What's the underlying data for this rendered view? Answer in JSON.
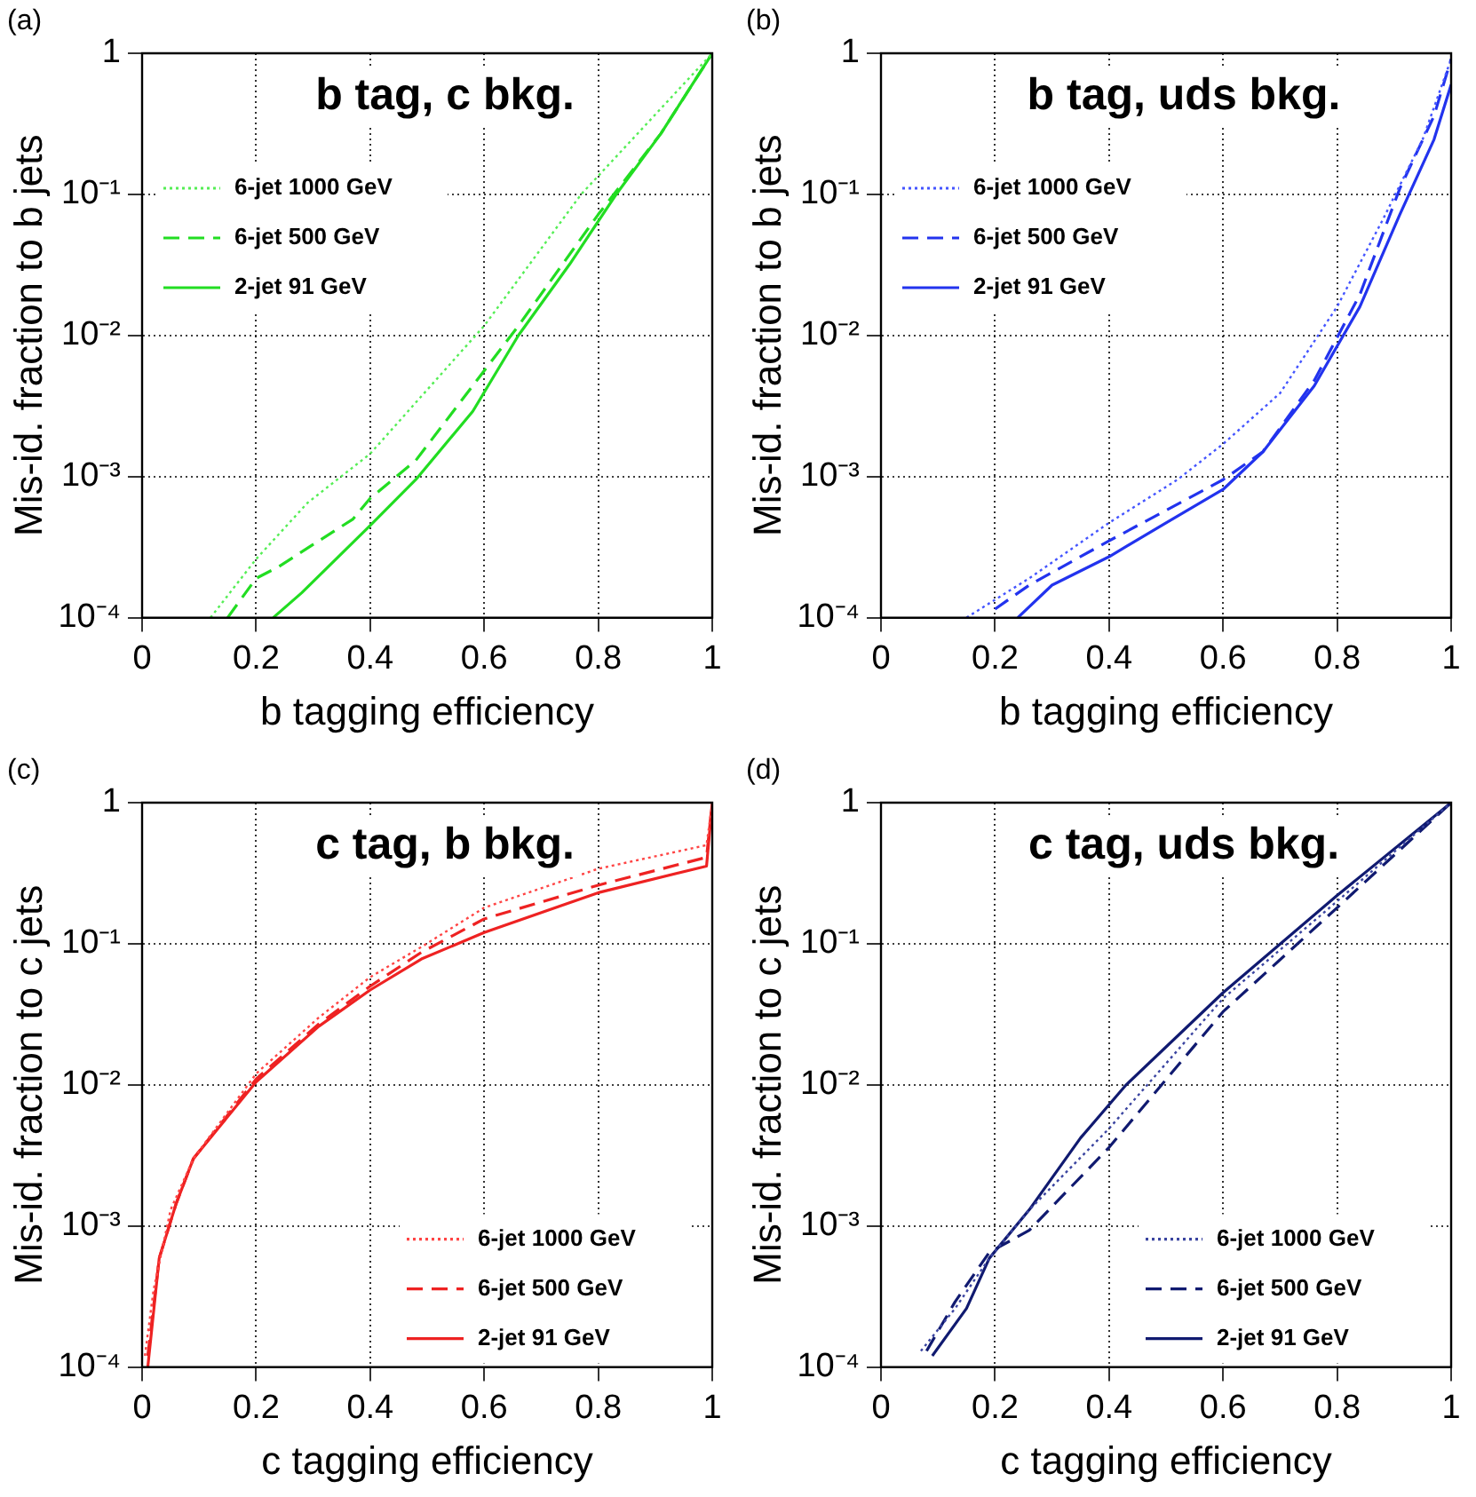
{
  "chart_data": [
    {
      "type": "line",
      "title": "b tag, c bkg.",
      "xlabel": "b tagging efficiency",
      "ylabel": "Mis-id. fraction to b jets",
      "annotations": [
        "(a)"
      ],
      "log": "y",
      "grid": true,
      "legend": "top left",
      "marker": "none",
      "xlim": [
        0,
        1
      ],
      "xticks": [
        0,
        0.2,
        0.4,
        0.6,
        0.8,
        1
      ],
      "ylim": [
        0.0001,
        1
      ],
      "yticks": [
        {
          "value": 0.0001,
          "label": "10⁻⁴"
        },
        {
          "value": 0.001,
          "label": "10⁻³"
        },
        {
          "value": 0.01,
          "label": "10⁻²"
        },
        {
          "value": 0.1,
          "label": "10⁻¹"
        },
        {
          "value": 1,
          "label": "1"
        }
      ],
      "series": [
        {
          "name": "6-jet 1000 GeV",
          "color": "#55ee55",
          "line_style": "dotted",
          "x": [
            0.12,
            0.2,
            0.29,
            0.4,
            0.6,
            0.77,
            1.0
          ],
          "values": [
            0.0001,
            0.00026,
            0.00065,
            0.00145,
            0.0117,
            0.1,
            1
          ]
        },
        {
          "name": "6-jet 500 GeV",
          "color": "#22dd22",
          "line_style": "dashed",
          "x": [
            0.15,
            0.2,
            0.24,
            0.31,
            0.37,
            0.4,
            0.48,
            0.58,
            0.66,
            0.8,
            0.91,
            1.0
          ],
          "values": [
            0.0001,
            0.00019,
            0.00023,
            0.00035,
            0.0005,
            0.0007,
            0.0013,
            0.0044,
            0.0117,
            0.072,
            0.27,
            1
          ]
        },
        {
          "name": "2-jet 91 GeV",
          "color": "#22dd22",
          "line_style": "solid",
          "x": [
            0.23,
            0.28,
            0.4,
            0.48,
            0.58,
            0.66,
            0.75,
            0.83,
            0.91,
            1.0
          ],
          "values": [
            0.0001,
            0.00015,
            0.00045,
            0.00095,
            0.0029,
            0.01,
            0.032,
            0.098,
            0.27,
            1
          ]
        }
      ]
    },
    {
      "type": "line",
      "title": "b tag, uds bkg.",
      "xlabel": "b tagging efficiency",
      "ylabel": "Mis-id. fraction to b jets",
      "annotations": [
        "(b)"
      ],
      "log": "y",
      "grid": true,
      "legend": "top left",
      "marker": "none",
      "xlim": [
        0,
        1
      ],
      "xticks": [
        0,
        0.2,
        0.4,
        0.6,
        0.8,
        1
      ],
      "ylim": [
        0.0001,
        1
      ],
      "yticks": [
        {
          "value": 0.0001,
          "label": "10⁻⁴"
        },
        {
          "value": 0.001,
          "label": "10⁻³"
        },
        {
          "value": 0.01,
          "label": "10⁻²"
        },
        {
          "value": 0.1,
          "label": "10⁻¹"
        },
        {
          "value": 1,
          "label": "1"
        }
      ],
      "series": [
        {
          "name": "6-jet 1000 GeV",
          "color": "#4455ff",
          "line_style": "dotted",
          "x": [
            0.15,
            0.26,
            0.4,
            0.52,
            0.6,
            0.7,
            0.8,
            0.88,
            0.95,
            1.0
          ],
          "values": [
            0.0001,
            0.00019,
            0.00047,
            0.00095,
            0.0017,
            0.0039,
            0.016,
            0.066,
            0.245,
            0.91
          ]
        },
        {
          "name": "6-jet 500 GeV",
          "color": "#2233ee",
          "line_style": "dashed",
          "x": [
            0.2,
            0.26,
            0.4,
            0.6,
            0.67,
            0.76,
            0.84,
            0.91,
            0.97,
            1.0
          ],
          "values": [
            0.000115,
            0.00017,
            0.00035,
            0.00095,
            0.0015,
            0.0048,
            0.0195,
            0.11,
            0.36,
            0.91
          ]
        },
        {
          "name": "2-jet 91 GeV",
          "color": "#2233ee",
          "line_style": "solid",
          "x": [
            0.24,
            0.3,
            0.4,
            0.5,
            0.6,
            0.67,
            0.76,
            0.84,
            0.91,
            0.97,
            1.0
          ],
          "values": [
            0.0001,
            0.00017,
            0.00027,
            0.00047,
            0.00081,
            0.0015,
            0.0044,
            0.016,
            0.072,
            0.245,
            0.6
          ]
        }
      ]
    },
    {
      "type": "line",
      "title": "c tag, b bkg.",
      "xlabel": "c tagging efficiency",
      "ylabel": "Mis-id. fraction to c jets",
      "annotations": [
        "(c)"
      ],
      "log": "y",
      "grid": true,
      "legend": "bottom right",
      "marker": "none",
      "xlim": [
        0,
        1
      ],
      "xticks": [
        0,
        0.2,
        0.4,
        0.6,
        0.8,
        1
      ],
      "ylim": [
        0.0001,
        1
      ],
      "yticks": [
        {
          "value": 0.0001,
          "label": "10⁻⁴"
        },
        {
          "value": 0.001,
          "label": "10⁻³"
        },
        {
          "value": 0.01,
          "label": "10⁻²"
        },
        {
          "value": 0.1,
          "label": "10⁻¹"
        },
        {
          "value": 1,
          "label": "1"
        }
      ],
      "series": [
        {
          "name": "6-jet 1000 GeV",
          "color": "#ff4444",
          "line_style": "dotted",
          "x": [
            0.005,
            0.02,
            0.05,
            0.09,
            0.2,
            0.31,
            0.4,
            0.49,
            0.6,
            0.8,
            0.99,
            1.0
          ],
          "values": [
            0.00012,
            0.00035,
            0.0013,
            0.003,
            0.012,
            0.03,
            0.058,
            0.095,
            0.18,
            0.34,
            0.5,
            1
          ]
        },
        {
          "name": "6-jet 500 GeV",
          "color": "#ee2222",
          "line_style": "dashed",
          "x": [
            0.01,
            0.03,
            0.06,
            0.09,
            0.2,
            0.31,
            0.4,
            0.49,
            0.6,
            0.8,
            0.99,
            1.0
          ],
          "values": [
            0.00012,
            0.00059,
            0.00145,
            0.003,
            0.011,
            0.027,
            0.05,
            0.087,
            0.15,
            0.26,
            0.41,
            1
          ]
        },
        {
          "name": "2-jet 91 GeV",
          "color": "#ee2222",
          "line_style": "solid",
          "x": [
            0.01,
            0.03,
            0.06,
            0.09,
            0.2,
            0.31,
            0.4,
            0.49,
            0.6,
            0.8,
            0.99,
            1.0
          ],
          "values": [
            0.0001,
            0.00059,
            0.00145,
            0.003,
            0.0105,
            0.026,
            0.047,
            0.078,
            0.12,
            0.23,
            0.355,
            1
          ]
        }
      ]
    },
    {
      "type": "line",
      "title": "c tag, uds bkg.",
      "xlabel": "c tagging efficiency",
      "ylabel": "Mis-id. fraction to c jets",
      "annotations": [
        "(d)"
      ],
      "log": "y",
      "grid": true,
      "legend": "bottom right",
      "marker": "none",
      "xlim": [
        0,
        1
      ],
      "xticks": [
        0,
        0.2,
        0.4,
        0.6,
        0.8,
        1
      ],
      "ylim": [
        0.0001,
        1
      ],
      "yticks": [
        {
          "value": 0.0001,
          "label": "10⁻⁴"
        },
        {
          "value": 0.001,
          "label": "10⁻³"
        },
        {
          "value": 0.01,
          "label": "10⁻²"
        },
        {
          "value": 0.1,
          "label": "10⁻¹"
        },
        {
          "value": 1,
          "label": "1"
        }
      ],
      "series": [
        {
          "name": "6-jet 1000 GeV",
          "color": "#3a44a0",
          "line_style": "dotted",
          "x": [
            0.07,
            0.13,
            0.19,
            0.26,
            0.4,
            0.6,
            0.8,
            1.0
          ],
          "values": [
            0.00013,
            0.00026,
            0.00059,
            0.0013,
            0.0049,
            0.041,
            0.2,
            1
          ]
        },
        {
          "name": "6-jet 500 GeV",
          "color": "#101a70",
          "line_style": "dashed",
          "x": [
            0.08,
            0.13,
            0.19,
            0.26,
            0.4,
            0.6,
            0.8,
            1.0
          ],
          "values": [
            0.00013,
            0.00029,
            0.00065,
            0.00093,
            0.0036,
            0.033,
            0.18,
            1
          ]
        },
        {
          "name": "2-jet 91 GeV",
          "color": "#101a70",
          "line_style": "solid",
          "x": [
            0.09,
            0.15,
            0.19,
            0.26,
            0.35,
            0.43,
            0.6,
            0.8,
            1.0
          ],
          "values": [
            0.00012,
            0.00026,
            0.00059,
            0.0013,
            0.0042,
            0.01,
            0.045,
            0.22,
            1
          ]
        }
      ]
    }
  ]
}
